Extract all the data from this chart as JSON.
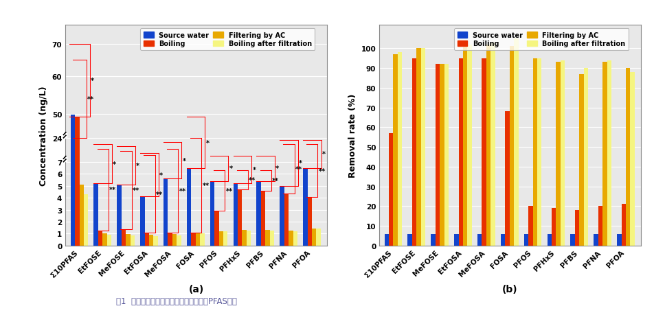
{
  "categories": [
    "Σ10PFAS",
    "EtFOSE",
    "MeFOSE",
    "EtFOSA",
    "MeFOSA",
    "FOSA",
    "PFOS",
    "PFHxS",
    "PFBS",
    "PFNA",
    "PFOA"
  ],
  "colors": {
    "source_water": "#1244cc",
    "boiling": "#e83000",
    "filtering_ac": "#e8a800",
    "boiling_after": "#f5f580"
  },
  "legend_labels": [
    "Source water",
    "Boiling",
    "Filtering by AC",
    "Boiling after filtration"
  ],
  "chart_a": {
    "ylabel": "Concentration (ng/L)",
    "xlabel": "(a)",
    "source_water": [
      49.0,
      5.2,
      5.1,
      4.1,
      5.6,
      6.5,
      5.4,
      5.2,
      5.4,
      5.0,
      6.5
    ],
    "boiling": [
      46.0,
      1.25,
      1.35,
      1.1,
      1.1,
      1.1,
      2.9,
      4.7,
      4.6,
      4.35,
      4.05
    ],
    "filtering_ac": [
      5.1,
      1.0,
      0.95,
      0.9,
      0.95,
      1.0,
      1.2,
      1.3,
      1.3,
      1.25,
      1.45
    ],
    "boiling_after": [
      4.3,
      0.9,
      0.85,
      0.8,
      0.85,
      1.0,
      1.2,
      1.25,
      1.25,
      1.2,
      1.4
    ],
    "ytick_real": [
      0,
      1,
      2,
      3,
      4,
      5,
      6,
      7,
      24,
      50,
      60,
      70
    ]
  },
  "chart_b": {
    "ylabel": "Removal rate (%)",
    "xlabel": "(b)",
    "source_water": [
      6,
      6,
      6,
      6,
      6,
      6,
      6,
      6,
      6,
      6,
      6
    ],
    "boiling": [
      57,
      95,
      92,
      95,
      95,
      68,
      20,
      19,
      18,
      20,
      21
    ],
    "filtering_ac": [
      97,
      100,
      92,
      101,
      102,
      101,
      95,
      93,
      87,
      93,
      90
    ],
    "boiling_after": [
      98,
      100,
      92,
      102,
      103,
      105,
      95,
      94,
      90,
      94,
      88
    ],
    "yticks": [
      0,
      10,
      20,
      30,
      40,
      50,
      60,
      70,
      80,
      90,
      100
    ],
    "ylim": [
      0,
      112
    ]
  },
  "background_color": "#ffffff",
  "plot_bg": "#e8e8e8",
  "grid_color": "#ffffff",
  "caption": "图1  活性炭过滤和水煮永可显著降低水中PFAS含量"
}
